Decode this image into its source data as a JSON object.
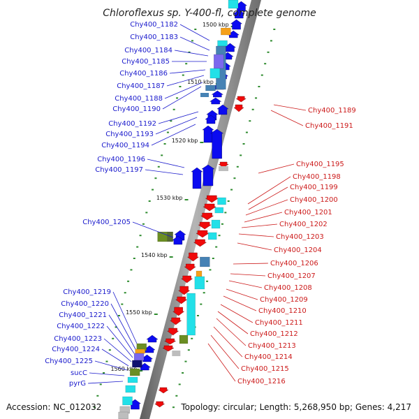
{
  "title": "Chloroflexus sp. Y-400-fl, complete genome",
  "accession": "Accession: NC_012032",
  "topology": "Topology: circular; Length: 5,268,950 bp; Genes: 4,217",
  "colors": {
    "forward_label": "#1a1acc",
    "reverse_label": "#cc1a1a",
    "backbone": "#8a8a8a",
    "forward_gene": "#0b0bf0",
    "reverse_gene": "#f00a0a",
    "tick": "#2e8b2e",
    "cyan": "#22e0e8",
    "orange": "#f5a01a",
    "olive": "#6b8e23",
    "steel": "#4682b4",
    "purple": "#7b68ee",
    "navy": "#101070",
    "gray": "#bdbdbd"
  },
  "ticks": [
    "1500 kbp",
    "1510 kbp",
    "1520 kbp",
    "1530 kbp",
    "1540 kbp",
    "1550 kbp",
    "1560 kbp"
  ],
  "forward_genes": [
    "Chy400_1182",
    "Chy400_1183",
    "Chy400_1184",
    "Chy400_1185",
    "Chy400_1186",
    "Chy400_1187",
    "Chy400_1188",
    "Chy400_1190",
    "Chy400_1192",
    "Chy400_1193",
    "Chy400_1194",
    "Chy400_1196",
    "Chy400_1197",
    "Chy400_1205",
    "Chy400_1219",
    "Chy400_1220",
    "Chy400_1221",
    "Chy400_1222",
    "Chy400_1223",
    "Chy400_1224",
    "Chy400_1225",
    "sucC",
    "pyrG"
  ],
  "reverse_genes": [
    "Chy400_1189",
    "Chy400_1191",
    "Chy400_1195",
    "Chy400_1198",
    "Chy400_1199",
    "Chy400_1200",
    "Chy400_1201",
    "Chy400_1202",
    "Chy400_1203",
    "Chy400_1204",
    "Chy400_1206",
    "Chy400_1207",
    "Chy400_1208",
    "Chy400_1209",
    "Chy400_1210",
    "Chy400_1211",
    "Chy400_1212",
    "Chy400_1213",
    "Chy400_1214",
    "Chy400_1215",
    "Chy400_1216"
  ]
}
